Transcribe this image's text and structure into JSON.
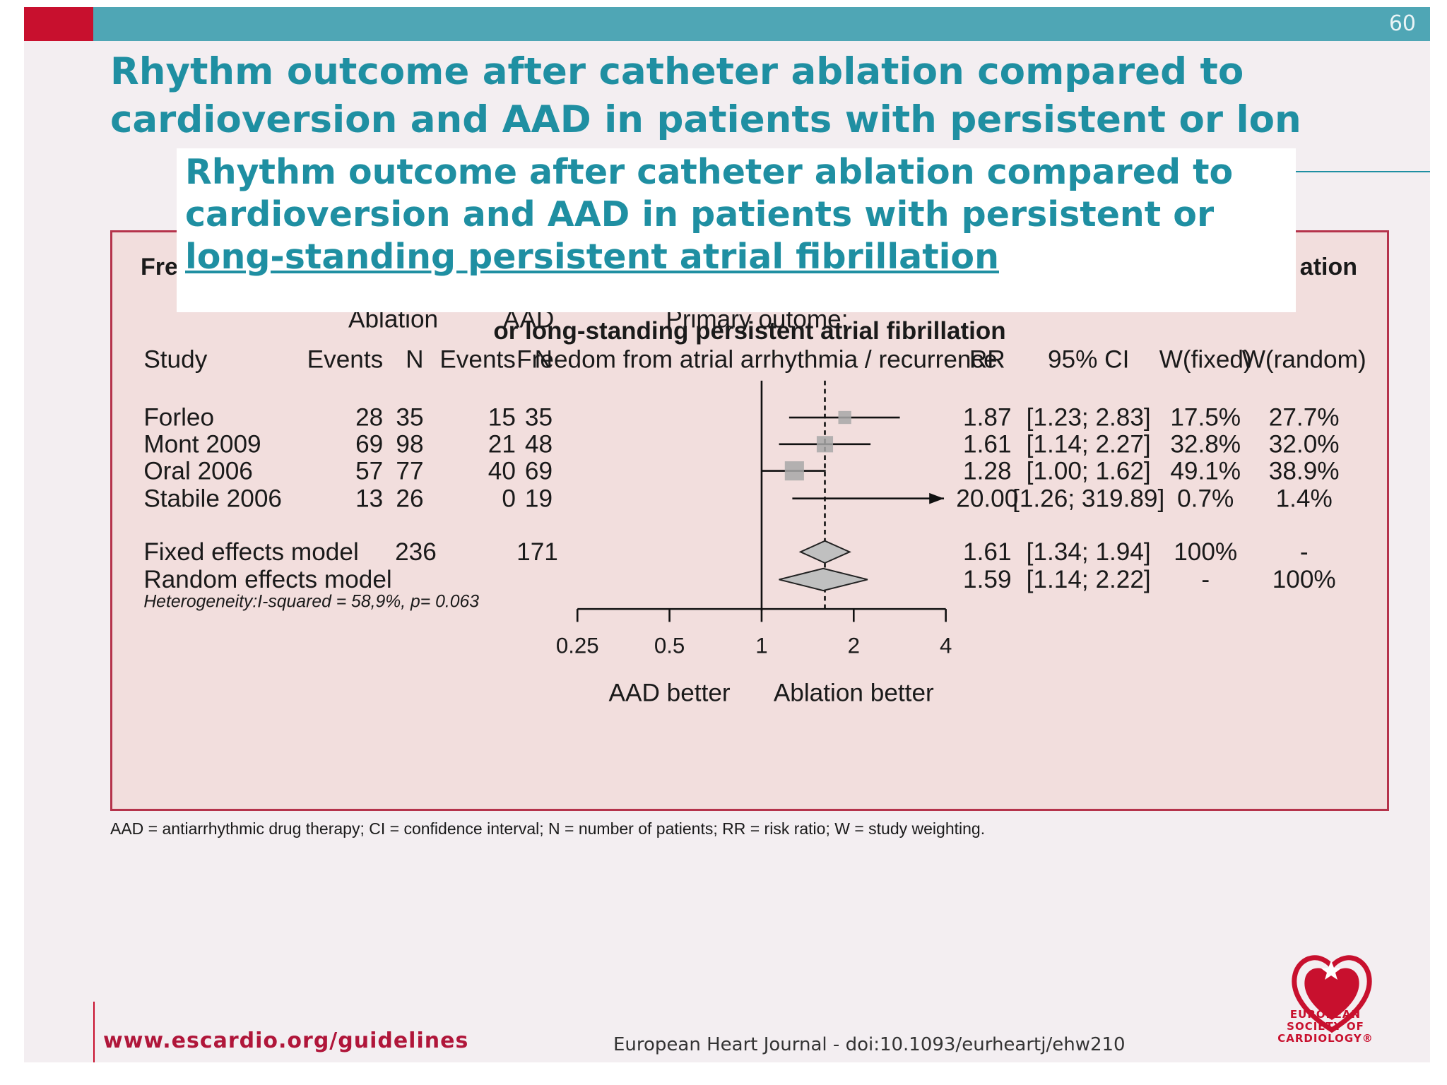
{
  "slide": {
    "page_number": "60",
    "title": "Rhythm outcome after catheter ablation compared to cardioversion and AAD in patients with persistent or lon",
    "overlay_title_line1": "Rhythm outcome after catheter ablation compared to",
    "overlay_title_line2": "cardioversion and AAD in patients with persistent or",
    "overlay_title_line3": "long-standing persistent atrial fibrillation",
    "colors": {
      "header_bar": "#4fa6b5",
      "header_accent": "#c8102e",
      "title": "#1f8fa2",
      "figure_border": "#b5334b",
      "figure_bg": "#f2dedd"
    }
  },
  "figure": {
    "heading_left_fragment": "Fre",
    "heading_right_fragment": "ation",
    "subtitle": "or long-standing persistent atrial fibrillation",
    "group_ablation": "Ablation",
    "group_aad": "AAD",
    "primary_outcome": "Primary outome:",
    "outcome_desc": "Freedom from atrial arrhythmia / recurrence",
    "col_study": "Study",
    "col_events_a": "Events",
    "col_n_a": "N",
    "col_events_b": "Events",
    "col_n_b": "N",
    "col_rr": "RR",
    "col_ci": "95% CI",
    "col_wfixed": "W(fixed)",
    "col_wrandom": "W(random)",
    "heterogeneity": "Heterogeneity:I-squared = 58,9%, p= 0.063",
    "aad_better": "AAD better",
    "ablation_better": "Ablation better"
  },
  "chart_data": {
    "type": "forest",
    "x_scale": "log",
    "x_ticks": [
      "0.25",
      "0.5",
      "1",
      "2",
      "4"
    ],
    "x_tick_values": [
      0.25,
      0.5,
      1,
      2,
      4
    ],
    "xlim": [
      0.25,
      4
    ],
    "reference_line": 1,
    "pooled_reference_line": 1.61,
    "studies": [
      {
        "name": "Forleo",
        "ev_a": "28",
        "n_a": "35",
        "ev_b": "15",
        "n_b": "35",
        "rr": 1.87,
        "rr_text": "1.87",
        "ci": [
          1.23,
          2.83
        ],
        "ci_text": "[1.23; 2.83]",
        "w_fixed": "17.5%",
        "w_random": "27.7%",
        "weight": 17.5
      },
      {
        "name": "Mont 2009",
        "ev_a": "69",
        "n_a": "98",
        "ev_b": "21",
        "n_b": "48",
        "rr": 1.61,
        "rr_text": "1.61",
        "ci": [
          1.14,
          2.27
        ],
        "ci_text": "[1.14; 2.27]",
        "w_fixed": "32.8%",
        "w_random": "32.0%",
        "weight": 32.8
      },
      {
        "name": "Oral 2006",
        "ev_a": "57",
        "n_a": "77",
        "ev_b": "40",
        "n_b": "69",
        "rr": 1.28,
        "rr_text": "1.28",
        "ci": [
          1.0,
          1.62
        ],
        "ci_text": "[1.00; 1.62]",
        "w_fixed": "49.1%",
        "w_random": "38.9%",
        "weight": 49.1
      },
      {
        "name": "Stabile 2006",
        "ev_a": "13",
        "n_a": "26",
        "ev_b": "0",
        "n_b": "19",
        "rr": 20.0,
        "rr_text": "20.00",
        "ci": [
          1.26,
          319.89
        ],
        "ci_text": "[1.26; 319.89]",
        "w_fixed": "0.7%",
        "w_random": "1.4%",
        "weight": 0.7
      }
    ],
    "pooled": [
      {
        "name": "Fixed effects model",
        "n_a": "236",
        "n_b": "171",
        "rr": 1.61,
        "rr_text": "1.61",
        "ci": [
          1.34,
          1.94
        ],
        "ci_text": "[1.34; 1.94]",
        "w_fixed": "100%",
        "w_random": "-"
      },
      {
        "name": "Random effects model",
        "n_a": "",
        "n_b": "",
        "rr": 1.59,
        "rr_text": "1.59",
        "ci": [
          1.14,
          2.22
        ],
        "ci_text": "[1.14; 2.22]",
        "w_fixed": "-",
        "w_random": "100%"
      }
    ]
  },
  "footnote": "AAD = antiarrhythmic drug therapy; CI = confidence interval; N = number of patients; RR = risk ratio; W = study weighting.",
  "footer": {
    "url": "www.escardio.org/guidelines",
    "doi": "European Heart Journal - doi:10.1093/eurheartj/ehw210",
    "logo_text_1": "EUROPEAN",
    "logo_text_2": "SOCIETY OF",
    "logo_text_3": "CARDIOLOGY®"
  }
}
